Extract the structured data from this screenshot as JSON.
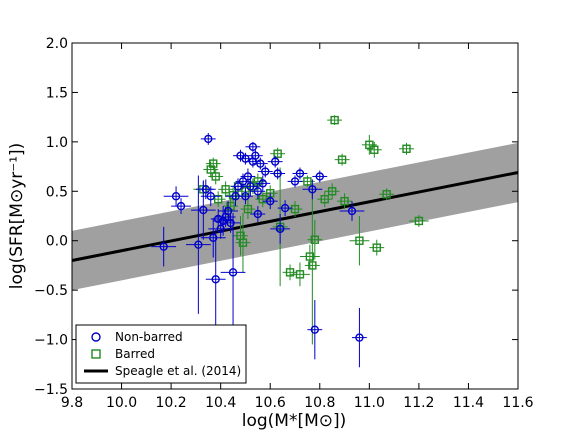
{
  "chart_data": {
    "type": "scatter",
    "xlabel": "log(M*[M⊙])",
    "ylabel": "log(SFR[M⊙yr⁻¹])",
    "xlim": [
      9.8,
      11.6
    ],
    "ylim": [
      -1.5,
      2.0
    ],
    "x_ticks": [
      "9.8",
      "10.0",
      "10.2",
      "10.4",
      "10.6",
      "10.8",
      "11.0",
      "11.2",
      "11.4",
      "11.6"
    ],
    "y_ticks": [
      "−1.5",
      "−1.0",
      "−0.5",
      "0.0",
      "0.5",
      "1.0",
      "1.5",
      "2.0"
    ],
    "x_tick_values": [
      9.8,
      10.0,
      10.2,
      10.4,
      10.6,
      10.8,
      11.0,
      11.2,
      11.4,
      11.6
    ],
    "y_tick_values": [
      -1.5,
      -1.0,
      -0.5,
      0.0,
      0.5,
      1.0,
      1.5,
      2.0
    ],
    "legend_position": "lower-left",
    "colors": {
      "non_barred": "#0000cc",
      "barred": "#228b22",
      "fit": "#000000",
      "band": "#a0a0a0"
    },
    "series": [
      {
        "name": "Non-barred",
        "marker": "circle",
        "points": [
          {
            "x": 10.17,
            "y": -0.06,
            "xerr": 0.05,
            "yerr": 0.2
          },
          {
            "x": 10.22,
            "y": 0.45,
            "xerr": 0.05,
            "yerr": 0.1
          },
          {
            "x": 10.24,
            "y": 0.35,
            "xerr": 0.04,
            "yerr": 0.08
          },
          {
            "x": 10.31,
            "y": -0.04,
            "xerr": 0.05,
            "yerr": 0.7
          },
          {
            "x": 10.33,
            "y": 0.31,
            "xerr": 0.05,
            "yerr": 0.3
          },
          {
            "x": 10.34,
            "y": 0.52,
            "xerr": 0.04,
            "yerr": 0.1
          },
          {
            "x": 10.35,
            "y": 1.03,
            "xerr": 0.03,
            "yerr": 0.06
          },
          {
            "x": 10.36,
            "y": 0.45,
            "xerr": 0.04,
            "yerr": 0.1
          },
          {
            "x": 10.37,
            "y": 0.03,
            "xerr": 0.05,
            "yerr": 0.2
          },
          {
            "x": 10.38,
            "y": -0.39,
            "xerr": 0.04,
            "yerr": 0.5
          },
          {
            "x": 10.39,
            "y": 0.22,
            "xerr": 0.03,
            "yerr": 0.1
          },
          {
            "x": 10.4,
            "y": 0.12,
            "xerr": 0.05,
            "yerr": 0.1
          },
          {
            "x": 10.41,
            "y": 0.2,
            "xerr": 0.04,
            "yerr": 0.15
          },
          {
            "x": 10.42,
            "y": 0.24,
            "xerr": 0.04,
            "yerr": 0.1
          },
          {
            "x": 10.43,
            "y": 0.3,
            "xerr": 0.04,
            "yerr": 0.1
          },
          {
            "x": 10.44,
            "y": 0.18,
            "xerr": 0.04,
            "yerr": 0.1
          },
          {
            "x": 10.45,
            "y": -0.32,
            "xerr": 0.05,
            "yerr": 0.6
          },
          {
            "x": 10.46,
            "y": 0.45,
            "xerr": 0.04,
            "yerr": 0.1
          },
          {
            "x": 10.47,
            "y": 0.55,
            "xerr": 0.03,
            "yerr": 0.08
          },
          {
            "x": 10.48,
            "y": 0.86,
            "xerr": 0.03,
            "yerr": 0.06
          },
          {
            "x": 10.49,
            "y": 0.6,
            "xerr": 0.03,
            "yerr": 0.08
          },
          {
            "x": 10.5,
            "y": 0.83,
            "xerr": 0.03,
            "yerr": 0.06
          },
          {
            "x": 10.5,
            "y": 0.45,
            "xerr": 0.03,
            "yerr": 0.08
          },
          {
            "x": 10.51,
            "y": 0.65,
            "xerr": 0.03,
            "yerr": 0.08
          },
          {
            "x": 10.52,
            "y": 0.55,
            "xerr": 0.03,
            "yerr": 0.1
          },
          {
            "x": 10.53,
            "y": 0.95,
            "xerr": 0.03,
            "yerr": 0.05
          },
          {
            "x": 10.53,
            "y": 0.8,
            "xerr": 0.03,
            "yerr": 0.06
          },
          {
            "x": 10.54,
            "y": 0.86,
            "xerr": 0.03,
            "yerr": 0.06
          },
          {
            "x": 10.55,
            "y": 0.5,
            "xerr": 0.03,
            "yerr": 0.08
          },
          {
            "x": 10.55,
            "y": 0.27,
            "xerr": 0.03,
            "yerr": 0.08
          },
          {
            "x": 10.56,
            "y": 0.78,
            "xerr": 0.03,
            "yerr": 0.06
          },
          {
            "x": 10.57,
            "y": 0.58,
            "xerr": 0.03,
            "yerr": 0.08
          },
          {
            "x": 10.58,
            "y": 0.7,
            "xerr": 0.03,
            "yerr": 0.06
          },
          {
            "x": 10.6,
            "y": 0.4,
            "xerr": 0.03,
            "yerr": 0.08
          },
          {
            "x": 10.62,
            "y": 0.8,
            "xerr": 0.03,
            "yerr": 0.06
          },
          {
            "x": 10.63,
            "y": 0.68,
            "xerr": 0.03,
            "yerr": 0.06
          },
          {
            "x": 10.64,
            "y": 0.12,
            "xerr": 0.04,
            "yerr": 0.15
          },
          {
            "x": 10.66,
            "y": 0.33,
            "xerr": 0.03,
            "yerr": 0.08
          },
          {
            "x": 10.7,
            "y": 0.6,
            "xerr": 0.03,
            "yerr": 0.06
          },
          {
            "x": 10.72,
            "y": 0.68,
            "xerr": 0.03,
            "yerr": 0.06
          },
          {
            "x": 10.77,
            "y": 0.52,
            "xerr": 0.04,
            "yerr": 0.1
          },
          {
            "x": 10.78,
            "y": -0.9,
            "xerr": 0.03,
            "yerr": 0.3
          },
          {
            "x": 10.8,
            "y": 0.65,
            "xerr": 0.03,
            "yerr": 0.06
          },
          {
            "x": 10.93,
            "y": 0.3,
            "xerr": 0.05,
            "yerr": 0.1
          },
          {
            "x": 10.96,
            "y": -0.98,
            "xerr": 0.03,
            "yerr": 0.3
          }
        ]
      },
      {
        "name": "Barred",
        "marker": "square",
        "points": [
          {
            "x": 10.33,
            "y": 0.52,
            "xerr": 0.04,
            "yerr": 0.08
          },
          {
            "x": 10.36,
            "y": 0.72,
            "xerr": 0.03,
            "yerr": 0.08
          },
          {
            "x": 10.37,
            "y": 0.78,
            "xerr": 0.03,
            "yerr": 0.06
          },
          {
            "x": 10.38,
            "y": 0.65,
            "xerr": 0.03,
            "yerr": 0.08
          },
          {
            "x": 10.39,
            "y": 0.42,
            "xerr": 0.03,
            "yerr": 0.08
          },
          {
            "x": 10.42,
            "y": 0.52,
            "xerr": 0.03,
            "yerr": 0.08
          },
          {
            "x": 10.44,
            "y": 0.35,
            "xerr": 0.03,
            "yerr": 0.1
          },
          {
            "x": 10.45,
            "y": 0.46,
            "xerr": 0.03,
            "yerr": 0.08
          },
          {
            "x": 10.47,
            "y": 0.55,
            "xerr": 0.03,
            "yerr": 0.08
          },
          {
            "x": 10.48,
            "y": 0.05,
            "xerr": 0.03,
            "yerr": 0.2
          },
          {
            "x": 10.49,
            "y": -0.02,
            "xerr": 0.03,
            "yerr": 0.3
          },
          {
            "x": 10.5,
            "y": 0.5,
            "xerr": 0.03,
            "yerr": 0.08
          },
          {
            "x": 10.51,
            "y": 0.32,
            "xerr": 0.03,
            "yerr": 0.1
          },
          {
            "x": 10.53,
            "y": 0.55,
            "xerr": 0.03,
            "yerr": 0.08
          },
          {
            "x": 10.55,
            "y": 0.6,
            "xerr": 0.03,
            "yerr": 0.08
          },
          {
            "x": 10.57,
            "y": 0.42,
            "xerr": 0.03,
            "yerr": 0.08
          },
          {
            "x": 10.6,
            "y": 0.48,
            "xerr": 0.03,
            "yerr": 0.08
          },
          {
            "x": 10.63,
            "y": 0.88,
            "xerr": 0.03,
            "yerr": 0.06
          },
          {
            "x": 10.64,
            "y": 0.14,
            "xerr": 0.03,
            "yerr": 0.6
          },
          {
            "x": 10.68,
            "y": -0.32,
            "xerr": 0.03,
            "yerr": 0.08
          },
          {
            "x": 10.7,
            "y": 0.32,
            "xerr": 0.03,
            "yerr": 0.08
          },
          {
            "x": 10.72,
            "y": -0.34,
            "xerr": 0.04,
            "yerr": 0.12
          },
          {
            "x": 10.75,
            "y": 0.6,
            "xerr": 0.03,
            "yerr": 0.06
          },
          {
            "x": 10.76,
            "y": -0.16,
            "xerr": 0.04,
            "yerr": 0.12
          },
          {
            "x": 10.77,
            "y": -0.25,
            "xerr": 0.03,
            "yerr": 0.8
          },
          {
            "x": 10.78,
            "y": 0.01,
            "xerr": 0.03,
            "yerr": 0.2
          },
          {
            "x": 10.82,
            "y": 0.42,
            "xerr": 0.03,
            "yerr": 0.08
          },
          {
            "x": 10.85,
            "y": 0.5,
            "xerr": 0.03,
            "yerr": 0.08
          },
          {
            "x": 10.86,
            "y": 1.22,
            "xerr": 0.03,
            "yerr": 0.05
          },
          {
            "x": 10.89,
            "y": 0.82,
            "xerr": 0.03,
            "yerr": 0.06
          },
          {
            "x": 10.9,
            "y": 0.4,
            "xerr": 0.03,
            "yerr": 0.08
          },
          {
            "x": 10.96,
            "y": 0.0,
            "xerr": 0.04,
            "yerr": 0.25
          },
          {
            "x": 11.0,
            "y": 0.97,
            "xerr": 0.03,
            "yerr": 0.1
          },
          {
            "x": 11.02,
            "y": 0.92,
            "xerr": 0.03,
            "yerr": 0.08
          },
          {
            "x": 11.03,
            "y": -0.07,
            "xerr": 0.03,
            "yerr": 0.08
          },
          {
            "x": 11.07,
            "y": 0.47,
            "xerr": 0.03,
            "yerr": 0.06
          },
          {
            "x": 11.15,
            "y": 0.93,
            "xerr": 0.03,
            "yerr": 0.06
          },
          {
            "x": 11.2,
            "y": 0.2,
            "xerr": 0.04,
            "yerr": 0.06
          }
        ]
      },
      {
        "name": "Speagle et al. (2014)",
        "type": "line",
        "x": [
          9.8,
          11.6
        ],
        "y": [
          -0.2,
          0.69
        ],
        "band_halfwidth": 0.3
      }
    ]
  }
}
